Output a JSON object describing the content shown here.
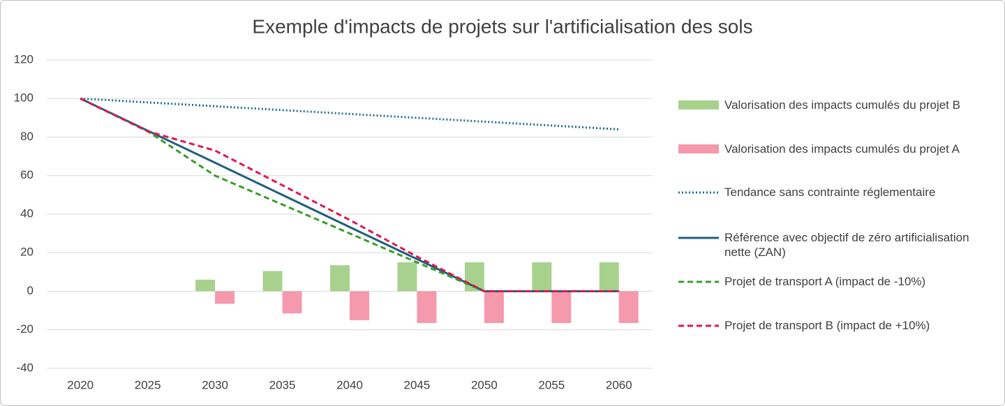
{
  "chart_data": {
    "type": "combo",
    "title": "Exemple d'impacts de projets sur l'artificialisation des sols",
    "categories": [
      "2020",
      "2025",
      "2030",
      "2035",
      "2040",
      "2045",
      "2050",
      "2055",
      "2060"
    ],
    "ylim": [
      -40,
      120
    ],
    "yticks": [
      -40,
      -20,
      0,
      20,
      40,
      60,
      80,
      100,
      120
    ],
    "grid": true,
    "legend": "right",
    "series": [
      {
        "name": "Valorisation des impacts cumulés du projet B",
        "type": "bar",
        "color": "#a9d18e",
        "values": [
          null,
          null,
          6,
          10.5,
          13.5,
          15,
          15,
          15,
          15
        ]
      },
      {
        "name": "Valorisation des impacts cumulés du projet A",
        "type": "bar",
        "color": "#f599ad",
        "values": [
          null,
          null,
          -6.5,
          -11.5,
          -15,
          -16.5,
          -16.5,
          -16.5,
          -16.5
        ]
      },
      {
        "name": "Tendance sans contrainte réglementaire",
        "type": "line",
        "dash": "dotted",
        "color": "#1f6f8b",
        "values": [
          100,
          98,
          96,
          94,
          92,
          90,
          88,
          86,
          84
        ]
      },
      {
        "name": "Référence avec objectif de zéro artificialisation nette (ZAN)",
        "type": "line",
        "dash": "solid",
        "color": "#1f5f7f",
        "values": [
          100,
          83.3,
          66.7,
          50,
          33.3,
          16.7,
          0,
          0,
          0
        ]
      },
      {
        "name": "Projet de transport A (impact de -10%)",
        "type": "line",
        "dash": "dashed",
        "color": "#3a9d2a",
        "values": [
          100,
          83,
          60,
          45,
          30,
          15,
          0,
          0,
          0
        ]
      },
      {
        "name": "Projet de transport B (impact de +10%)",
        "type": "line",
        "dash": "dashed",
        "color": "#e0174f",
        "values": [
          100,
          83,
          73,
          55,
          37,
          18,
          0,
          0,
          0
        ]
      }
    ]
  }
}
